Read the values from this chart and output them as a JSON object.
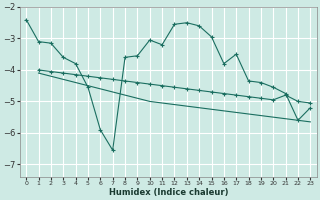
{
  "xlabel": "Humidex (Indice chaleur)",
  "bg_color": "#ceeae4",
  "grid_color": "#b0d8d0",
  "line_color": "#1a6e60",
  "xlim": [
    -0.5,
    23.5
  ],
  "ylim": [
    -7.4,
    -2.0
  ],
  "yticks": [
    -7,
    -6,
    -5,
    -4,
    -3,
    -2
  ],
  "xticks": [
    0,
    1,
    2,
    3,
    4,
    5,
    6,
    7,
    8,
    9,
    10,
    11,
    12,
    13,
    14,
    15,
    16,
    17,
    18,
    19,
    20,
    21,
    22,
    23
  ],
  "line1_x": [
    0,
    1,
    2,
    3,
    4,
    5,
    6,
    7,
    8,
    9,
    10,
    11,
    12,
    13,
    14,
    15,
    16,
    17,
    18,
    19,
    20,
    21,
    22,
    23
  ],
  "line1_y": [
    -2.4,
    -3.1,
    -3.15,
    -3.6,
    -3.8,
    -4.55,
    -5.9,
    -6.55,
    -3.6,
    -3.55,
    -3.05,
    -3.2,
    -2.55,
    -2.5,
    -2.6,
    -2.95,
    -3.8,
    -3.5,
    -4.35,
    -4.4,
    -4.55,
    -4.75,
    -5.6,
    -5.2
  ],
  "line2_x": [
    1,
    2,
    3,
    4,
    5,
    6,
    7,
    8,
    9,
    10,
    11,
    12,
    13,
    14,
    15,
    16,
    17,
    18,
    19,
    20,
    21,
    22,
    23
  ],
  "line2_y": [
    -4.0,
    -4.05,
    -4.1,
    -4.15,
    -4.2,
    -4.25,
    -4.3,
    -4.35,
    -4.4,
    -4.45,
    -4.5,
    -4.55,
    -4.6,
    -4.65,
    -4.7,
    -4.75,
    -4.8,
    -4.85,
    -4.9,
    -4.95,
    -4.8,
    -5.0,
    -5.05
  ],
  "line3_x": [
    1,
    2,
    3,
    4,
    5,
    6,
    7,
    8,
    9,
    10,
    11,
    12,
    13,
    14,
    15,
    16,
    17,
    18,
    19,
    20,
    21,
    22,
    23
  ],
  "line3_y": [
    -4.1,
    -4.2,
    -4.3,
    -4.4,
    -4.5,
    -4.6,
    -4.7,
    -4.8,
    -4.9,
    -5.0,
    -5.05,
    -5.1,
    -5.15,
    -5.2,
    -5.25,
    -5.3,
    -5.35,
    -5.4,
    -5.45,
    -5.5,
    -5.55,
    -5.6,
    -5.65
  ]
}
